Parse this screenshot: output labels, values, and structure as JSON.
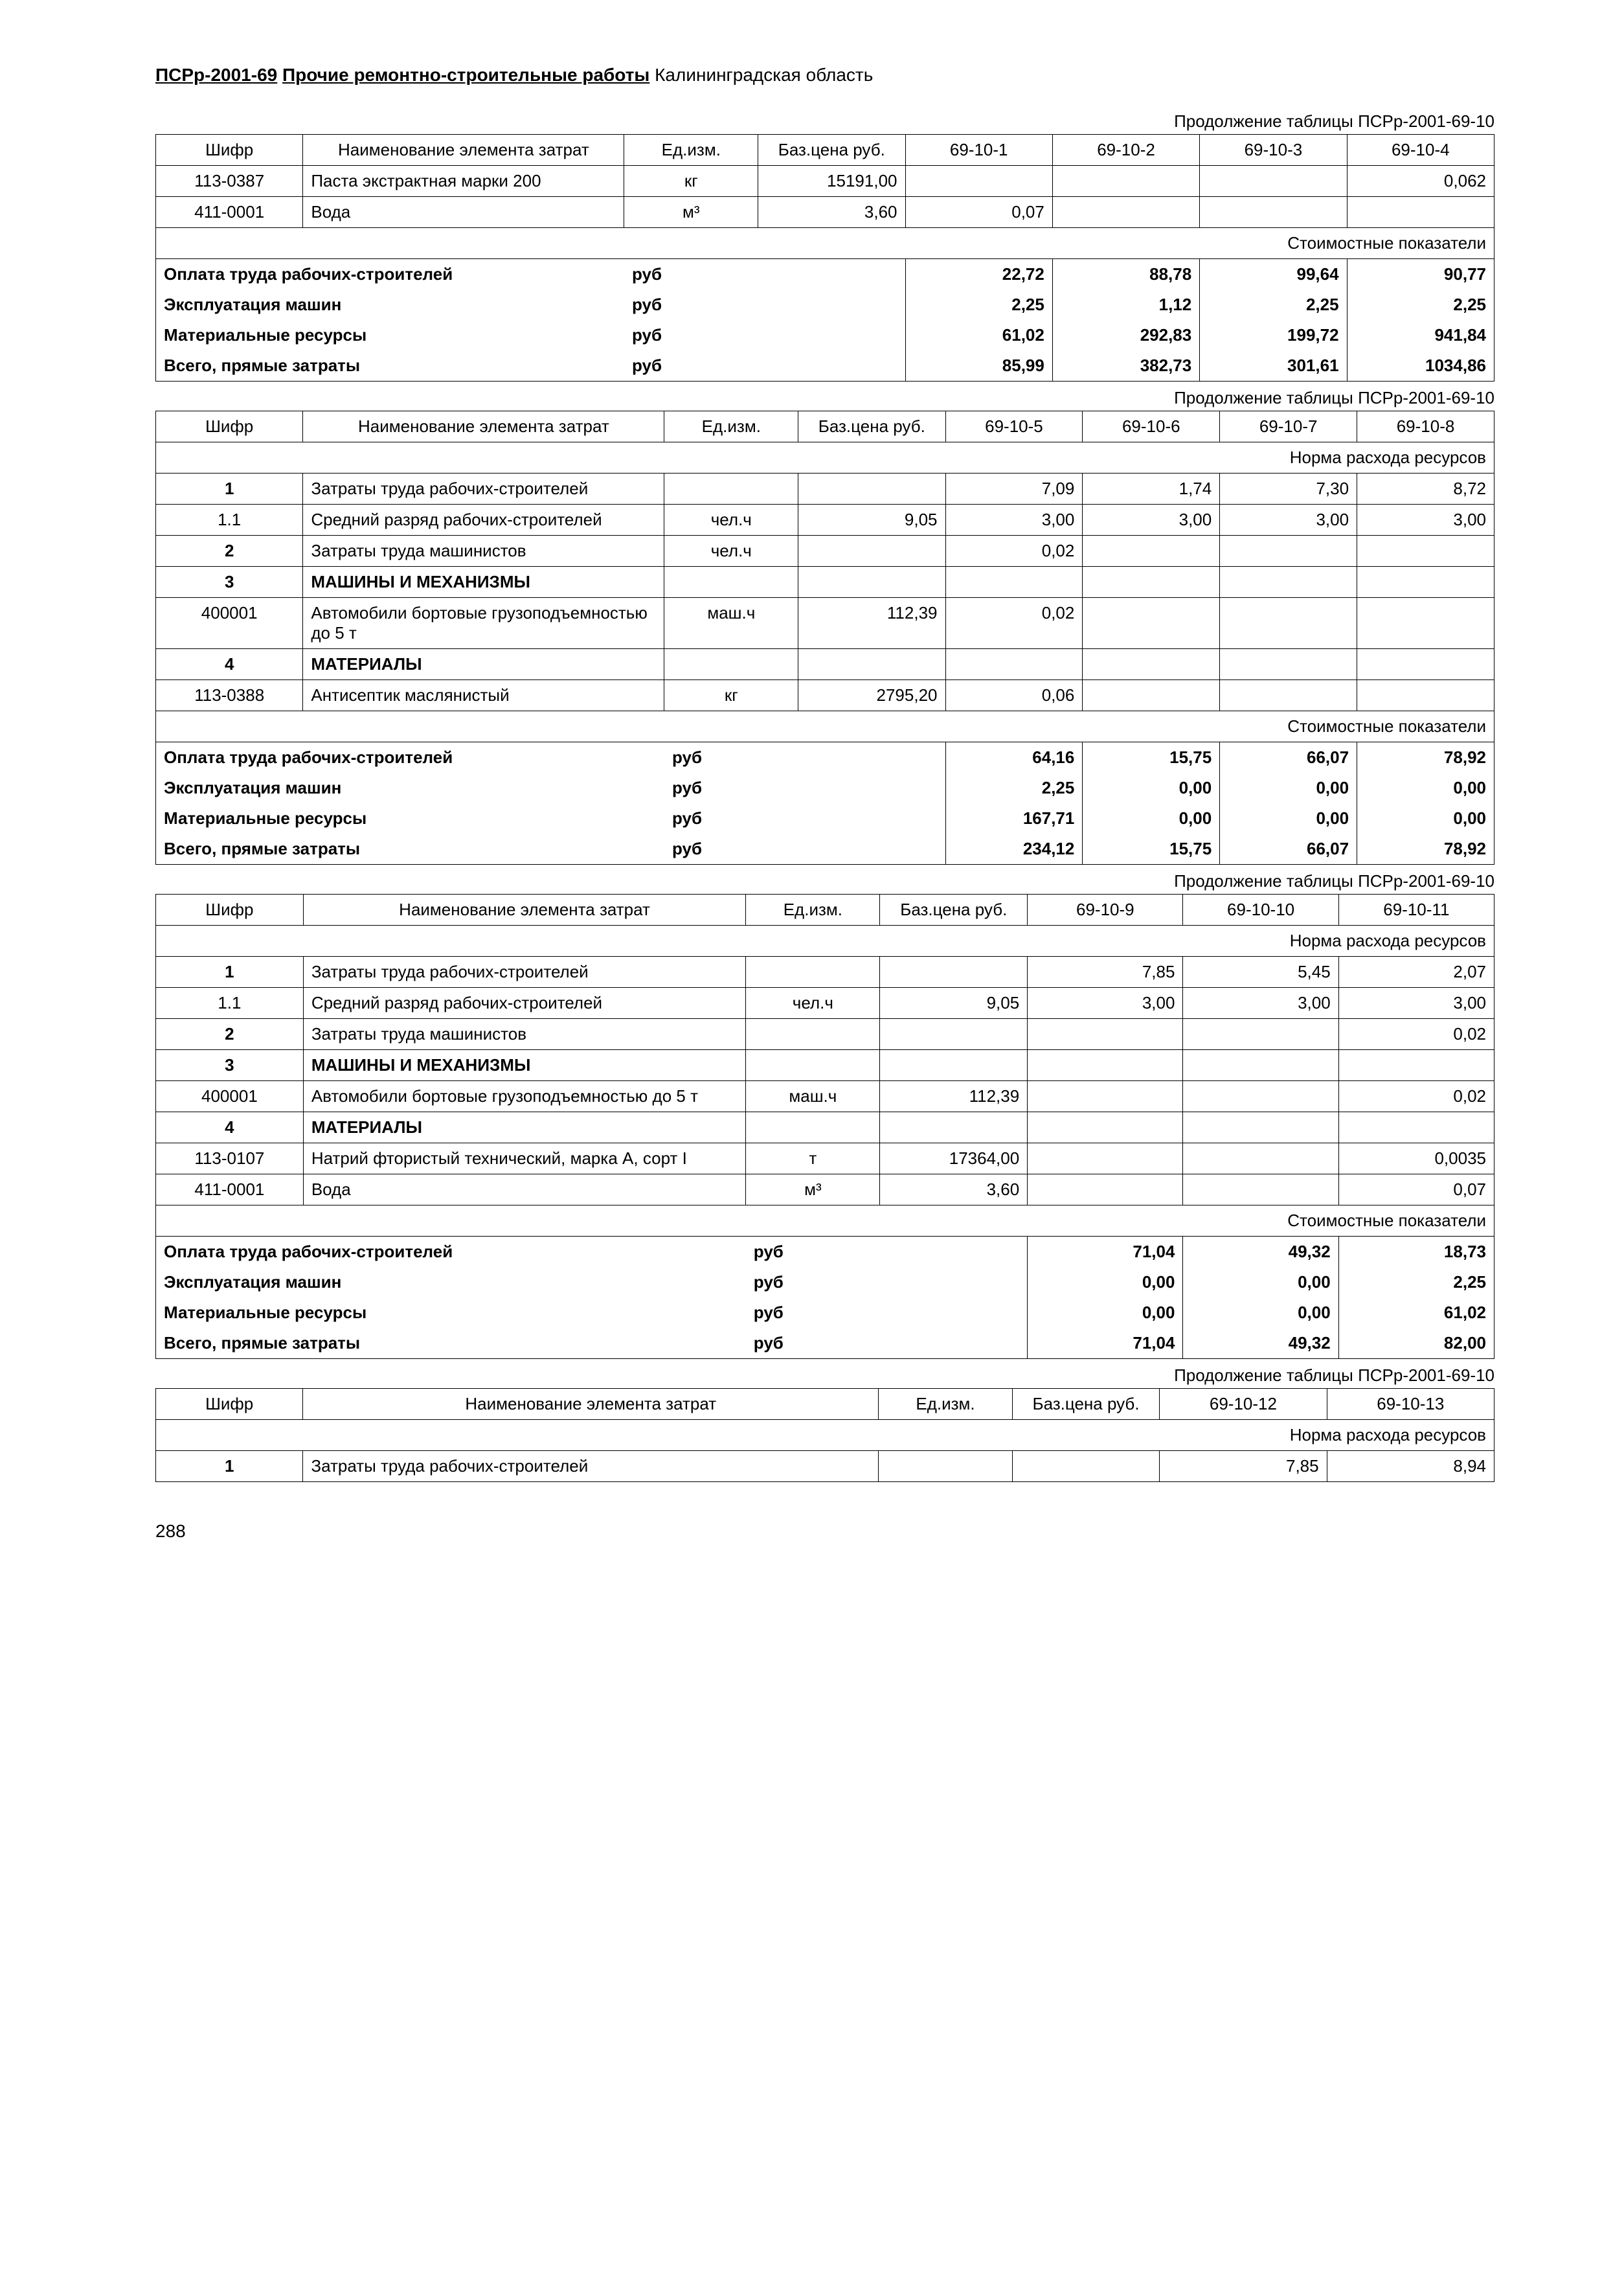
{
  "header": {
    "code": "ПСРр-2001-69",
    "title": "Прочие ремонтно-строительные работы",
    "region": "Калининградская область"
  },
  "continuation": "Продолжение таблицы ПСРр-2001-69-10",
  "banner_norma": "Норма расхода ресурсов",
  "banner_cost": "Стоимостные показатели",
  "labels": {
    "shifr": "Шифр",
    "name": "Наименование элемента затрат",
    "unit": "Ед.изм.",
    "baseprice": "Баз.цена руб.",
    "oplata": "Оплата труда рабочих-строителей",
    "ekspl": "Эксплуатация машин",
    "mat": "Материальные ресурсы",
    "vsego": "Всего, прямые затраты",
    "rub": "руб"
  },
  "t1": {
    "cols": [
      "69-10-1",
      "69-10-2",
      "69-10-3",
      "69-10-4"
    ],
    "rows": [
      {
        "shifr": "113-0387",
        "name": "Паста экстрактная марки 200",
        "unit": "кг",
        "price": "15191,00",
        "v": [
          "",
          "",
          "",
          "0,062"
        ]
      },
      {
        "shifr": "411-0001",
        "name": "Вода",
        "unit": "м³",
        "price": "3,60",
        "v": [
          "0,07",
          "",
          "",
          ""
        ]
      }
    ],
    "cost": [
      [
        "22,72",
        "88,78",
        "99,64",
        "90,77"
      ],
      [
        "2,25",
        "1,12",
        "2,25",
        "2,25"
      ],
      [
        "61,02",
        "292,83",
        "199,72",
        "941,84"
      ],
      [
        "85,99",
        "382,73",
        "301,61",
        "1034,86"
      ]
    ]
  },
  "t2": {
    "cols": [
      "69-10-5",
      "69-10-6",
      "69-10-7",
      "69-10-8"
    ],
    "rows": [
      {
        "shifr": "1",
        "bold": true,
        "name": "Затраты труда рабочих-строителей",
        "unit": "",
        "price": "",
        "v": [
          "7,09",
          "1,74",
          "7,30",
          "8,72"
        ]
      },
      {
        "shifr": "1.1",
        "name": "Средний разряд рабочих-строителей",
        "unit": "чел.ч",
        "price": "9,05",
        "v": [
          "3,00",
          "3,00",
          "3,00",
          "3,00"
        ]
      },
      {
        "shifr": "2",
        "bold": true,
        "sep": true,
        "name": "Затраты труда машинистов",
        "unit": "чел.ч",
        "price": "",
        "v": [
          "0,02",
          "",
          "",
          ""
        ]
      },
      {
        "shifr": "3",
        "bold": true,
        "sep": true,
        "name": "МАШИНЫ И МЕХАНИЗМЫ",
        "boldname": true,
        "unit": "",
        "price": "",
        "v": [
          "",
          "",
          "",
          ""
        ]
      },
      {
        "shifr": "400001",
        "name": "Автомобили бортовые грузоподъемностью до 5 т",
        "unit": "маш.ч",
        "price": "112,39",
        "v": [
          "0,02",
          "",
          "",
          ""
        ]
      },
      {
        "shifr": "4",
        "bold": true,
        "sep": true,
        "name": "МАТЕРИАЛЫ",
        "boldname": true,
        "unit": "",
        "price": "",
        "v": [
          "",
          "",
          "",
          ""
        ]
      },
      {
        "shifr": "113-0388",
        "name": "Антисептик маслянистый",
        "unit": "кг",
        "price": "2795,20",
        "v": [
          "0,06",
          "",
          "",
          ""
        ]
      }
    ],
    "cost": [
      [
        "64,16",
        "15,75",
        "66,07",
        "78,92"
      ],
      [
        "2,25",
        "0,00",
        "0,00",
        "0,00"
      ],
      [
        "167,71",
        "0,00",
        "0,00",
        "0,00"
      ],
      [
        "234,12",
        "15,75",
        "66,07",
        "78,92"
      ]
    ]
  },
  "t3": {
    "cols": [
      "69-10-9",
      "69-10-10",
      "69-10-11"
    ],
    "rows": [
      {
        "shifr": "1",
        "bold": true,
        "name": "Затраты труда рабочих-строителей",
        "unit": "",
        "price": "",
        "v": [
          "7,85",
          "5,45",
          "2,07"
        ]
      },
      {
        "shifr": "1.1",
        "name": "Средний разряд рабочих-строителей",
        "unit": "чел.ч",
        "price": "9,05",
        "v": [
          "3,00",
          "3,00",
          "3,00"
        ]
      },
      {
        "shifr": "2",
        "bold": true,
        "sep": true,
        "name": "Затраты труда машинистов",
        "unit": "",
        "price": "",
        "v": [
          "",
          "",
          "0,02"
        ]
      },
      {
        "shifr": "3",
        "bold": true,
        "sep": true,
        "name": "МАШИНЫ И МЕХАНИЗМЫ",
        "boldname": true,
        "unit": "",
        "price": "",
        "v": [
          "",
          "",
          ""
        ]
      },
      {
        "shifr": "400001",
        "name": "Автомобили бортовые грузоподъемностью до 5 т",
        "unit": "маш.ч",
        "price": "112,39",
        "v": [
          "",
          "",
          "0,02"
        ]
      },
      {
        "shifr": "4",
        "bold": true,
        "sep": true,
        "name": "МАТЕРИАЛЫ",
        "boldname": true,
        "unit": "",
        "price": "",
        "v": [
          "",
          "",
          ""
        ]
      },
      {
        "shifr": "113-0107",
        "name": "Натрий фтористый технический, марка А, сорт I",
        "unit": "т",
        "price": "17364,00",
        "v": [
          "",
          "",
          "0,0035"
        ]
      },
      {
        "shifr": "411-0001",
        "name": "Вода",
        "unit": "м³",
        "price": "3,60",
        "v": [
          "",
          "",
          "0,07"
        ]
      }
    ],
    "cost": [
      [
        "71,04",
        "49,32",
        "18,73"
      ],
      [
        "0,00",
        "0,00",
        "2,25"
      ],
      [
        "0,00",
        "0,00",
        "61,02"
      ],
      [
        "71,04",
        "49,32",
        "82,00"
      ]
    ]
  },
  "t4": {
    "cols": [
      "69-10-12",
      "69-10-13"
    ],
    "rows": [
      {
        "shifr": "1",
        "bold": true,
        "name": "Затраты труда рабочих-строителей",
        "unit": "",
        "price": "",
        "v": [
          "7,85",
          "8,94"
        ]
      }
    ]
  },
  "pagenum": "288"
}
